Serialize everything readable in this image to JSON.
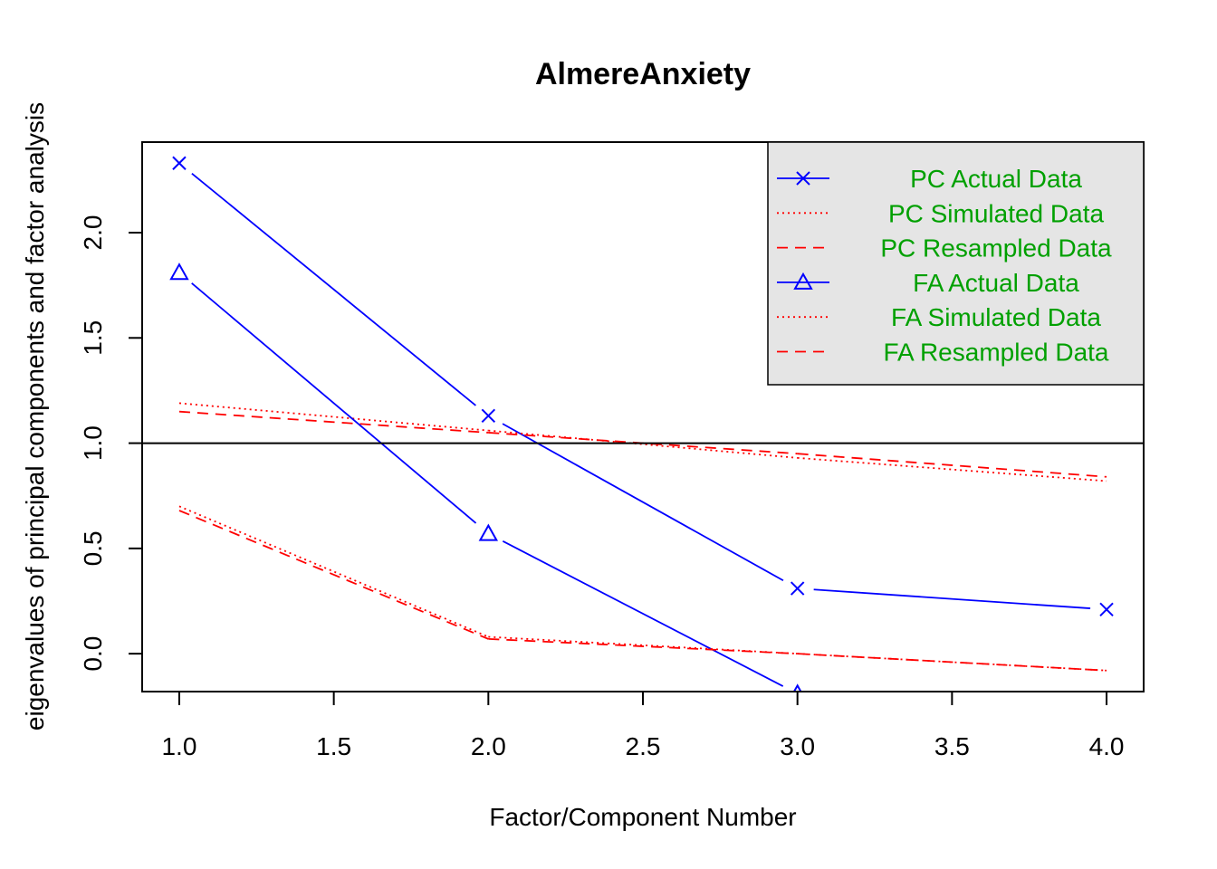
{
  "chart_data": {
    "type": "line",
    "title": "AlmereAnxiety",
    "xlabel": "Factor/Component Number",
    "ylabel": "eigenvalues of principal components and factor analysis",
    "xlim": [
      0.88,
      4.12
    ],
    "ylim": [
      -0.18,
      2.43
    ],
    "x_ticks": [
      "1.0",
      "1.5",
      "2.0",
      "2.5",
      "3.0",
      "3.5",
      "4.0"
    ],
    "y_ticks": [
      "0.0",
      "0.5",
      "1.0",
      "1.5",
      "2.0"
    ],
    "reference_line_y": 1.0,
    "grid": false,
    "legend": {
      "placement": "top-right",
      "background": "#e5e5e5",
      "text_color": "#00a000"
    },
    "x": [
      1,
      2,
      3,
      4
    ],
    "series": [
      {
        "name": "PC  Actual Data",
        "values": [
          2.33,
          1.13,
          0.31,
          0.21
        ],
        "color": "#0000ff",
        "line": "solid",
        "marker": "x"
      },
      {
        "name": "PC  Simulated Data",
        "values": [
          1.19,
          1.06,
          0.93,
          0.82
        ],
        "color": "#ff0000",
        "line": "dotted",
        "marker": "none"
      },
      {
        "name": "PC  Resampled Data",
        "values": [
          1.15,
          1.05,
          0.95,
          0.84
        ],
        "color": "#ff0000",
        "line": "dashed",
        "marker": "none"
      },
      {
        "name": "FA  Actual Data",
        "values": [
          1.81,
          0.57,
          -0.19,
          null
        ],
        "color": "#0000ff",
        "line": "solid",
        "marker": "triangle"
      },
      {
        "name": "FA  Simulated Data",
        "values": [
          0.7,
          0.08,
          0.0,
          -0.08
        ],
        "color": "#ff0000",
        "line": "dotted",
        "marker": "none"
      },
      {
        "name": "FA  Resampled Data",
        "values": [
          0.68,
          0.07,
          0.0,
          -0.08
        ],
        "color": "#ff0000",
        "line": "dashed",
        "marker": "none"
      }
    ]
  }
}
